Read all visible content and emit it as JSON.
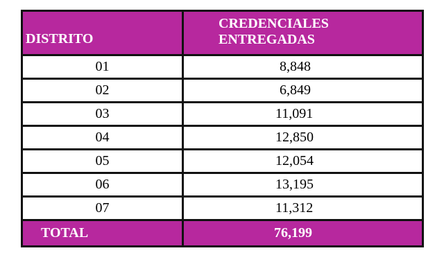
{
  "table": {
    "header": {
      "col1": "DISTRITO",
      "col2_line1": "CREDENCIALES",
      "col2_line2": "ENTREGADAS"
    },
    "rows": [
      {
        "distrito": "01",
        "credenciales": "8,848"
      },
      {
        "distrito": "02",
        "credenciales": "6,849"
      },
      {
        "distrito": "03",
        "credenciales": "11,091"
      },
      {
        "distrito": "04",
        "credenciales": "12,850"
      },
      {
        "distrito": "05",
        "credenciales": "12,054"
      },
      {
        "distrito": "06",
        "credenciales": "13,195"
      },
      {
        "distrito": "07",
        "credenciales": "11,312"
      }
    ],
    "total": {
      "label": "TOTAL",
      "value": "76,199"
    }
  },
  "colors": {
    "header_bg": "#b7289e",
    "border": "#111111"
  }
}
